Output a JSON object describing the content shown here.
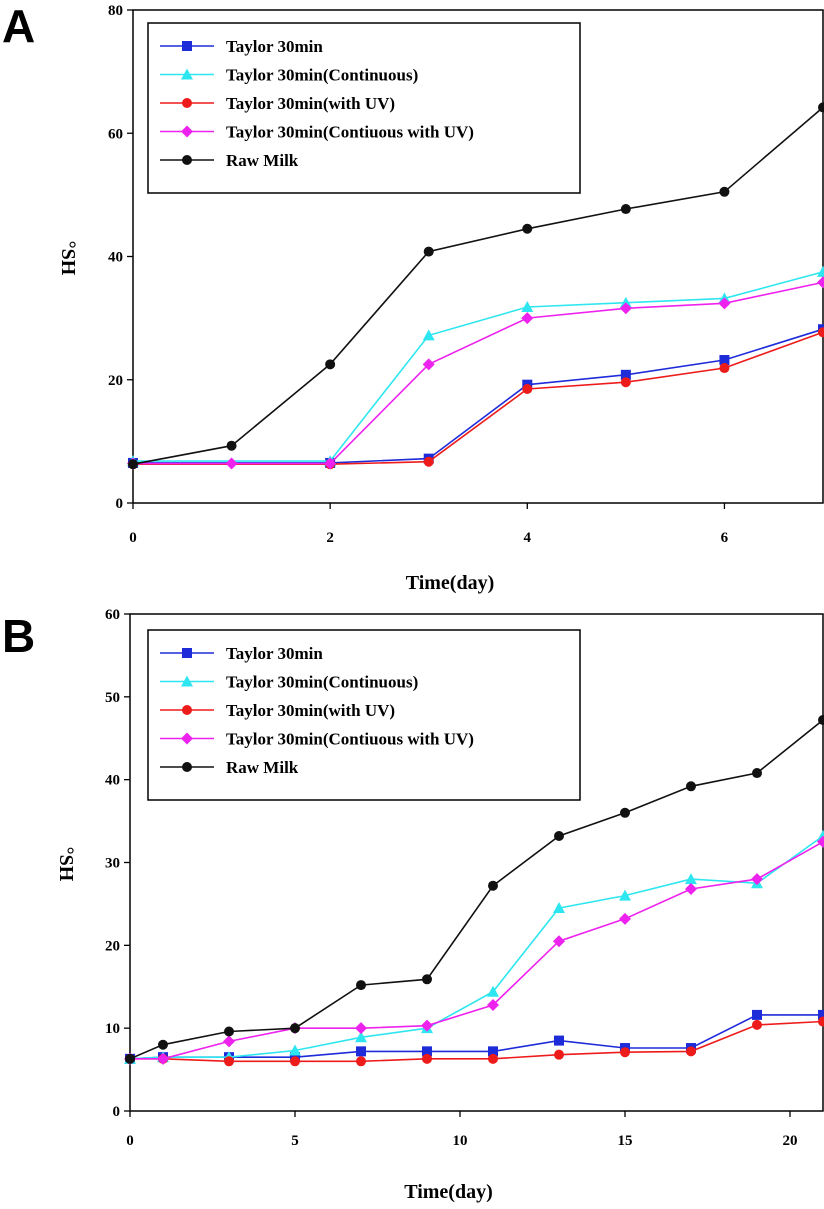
{
  "chart_data": [
    {
      "panel": "A",
      "type": "line",
      "xlabel": "Time(day)",
      "ylabel": "°SH",
      "xlim": [
        0,
        7
      ],
      "ylim": [
        0,
        80
      ],
      "xticks": [
        0,
        2,
        4,
        6
      ],
      "yticks": [
        0,
        20,
        40,
        60,
        80
      ],
      "legend_position": "top-left",
      "x": [
        0,
        1,
        2,
        3,
        4,
        5,
        6,
        7
      ],
      "series": [
        {
          "name": "Taylor 30min",
          "color": "#1e2bd9",
          "marker": "square",
          "x": [
            0,
            2,
            3,
            4,
            5,
            6,
            7
          ],
          "values": [
            6.5,
            6.5,
            7.2,
            19.2,
            20.8,
            23.2,
            28.2
          ]
        },
        {
          "name": "Taylor 30min(Continuous)",
          "color": "#2ee6f0",
          "marker": "triangle",
          "x": [
            0,
            2,
            3,
            4,
            5,
            6,
            7
          ],
          "values": [
            6.8,
            6.8,
            27.2,
            31.8,
            32.5,
            33.2,
            37.5
          ]
        },
        {
          "name": "Taylor 30min(with UV)",
          "color": "#ee1b1b",
          "marker": "circle",
          "x": [
            0,
            2,
            3,
            4,
            5,
            6,
            7
          ],
          "values": [
            6.3,
            6.3,
            6.7,
            18.5,
            19.6,
            21.9,
            27.7
          ]
        },
        {
          "name": "Taylor 30min(Contiuous with UV)",
          "color": "#ee22ee",
          "marker": "diamond",
          "x": [
            0,
            1,
            2,
            3,
            4,
            5,
            6,
            7
          ],
          "values": [
            6.4,
            6.4,
            6.4,
            22.5,
            30.0,
            31.6,
            32.4,
            35.8
          ]
        },
        {
          "name": "Raw Milk",
          "color": "#111111",
          "marker": "circle",
          "x": [
            0,
            1,
            2,
            3,
            4,
            5,
            6,
            7
          ],
          "values": [
            6.3,
            9.3,
            22.5,
            40.8,
            44.5,
            47.7,
            50.5,
            64.2
          ]
        }
      ]
    },
    {
      "panel": "B",
      "type": "line",
      "xlabel": "Time(day)",
      "ylabel": "°SH",
      "xlim": [
        0,
        21
      ],
      "ylim": [
        0,
        60
      ],
      "xticks": [
        0,
        5,
        10,
        15,
        20
      ],
      "yticks": [
        0,
        10,
        20,
        30,
        40,
        50,
        60
      ],
      "legend_position": "top-left",
      "x": [
        0,
        1,
        3,
        5,
        7,
        9,
        11,
        13,
        15,
        17,
        19,
        21
      ],
      "series": [
        {
          "name": "Taylor 30min",
          "color": "#1e2bd9",
          "marker": "square",
          "values": [
            6.3,
            6.5,
            6.5,
            6.5,
            7.2,
            7.2,
            7.2,
            8.5,
            7.6,
            7.6,
            11.6,
            11.6
          ]
        },
        {
          "name": "Taylor 30min(Continuous)",
          "color": "#2ee6f0",
          "marker": "triangle",
          "values": [
            6.3,
            6.5,
            6.5,
            7.3,
            8.9,
            10.0,
            14.4,
            24.5,
            26.0,
            28.0,
            27.5,
            33.2
          ]
        },
        {
          "name": "Taylor 30min(with UV)",
          "color": "#ee1b1b",
          "marker": "circle",
          "values": [
            6.3,
            6.3,
            6.0,
            6.0,
            6.0,
            6.3,
            6.3,
            6.8,
            7.1,
            7.2,
            10.4,
            10.8
          ]
        },
        {
          "name": "Taylor 30min(Contiuous with UV)",
          "color": "#ee22ee",
          "marker": "diamond",
          "values": [
            6.3,
            6.3,
            8.4,
            10.0,
            10.0,
            10.3,
            12.8,
            20.5,
            23.2,
            26.8,
            28.0,
            32.5
          ]
        },
        {
          "name": "Raw Milk",
          "color": "#111111",
          "marker": "circle",
          "values": [
            6.3,
            8.0,
            9.6,
            10.0,
            15.2,
            15.9,
            27.2,
            33.2,
            36.0,
            39.2,
            40.8,
            47.2
          ]
        }
      ]
    }
  ]
}
